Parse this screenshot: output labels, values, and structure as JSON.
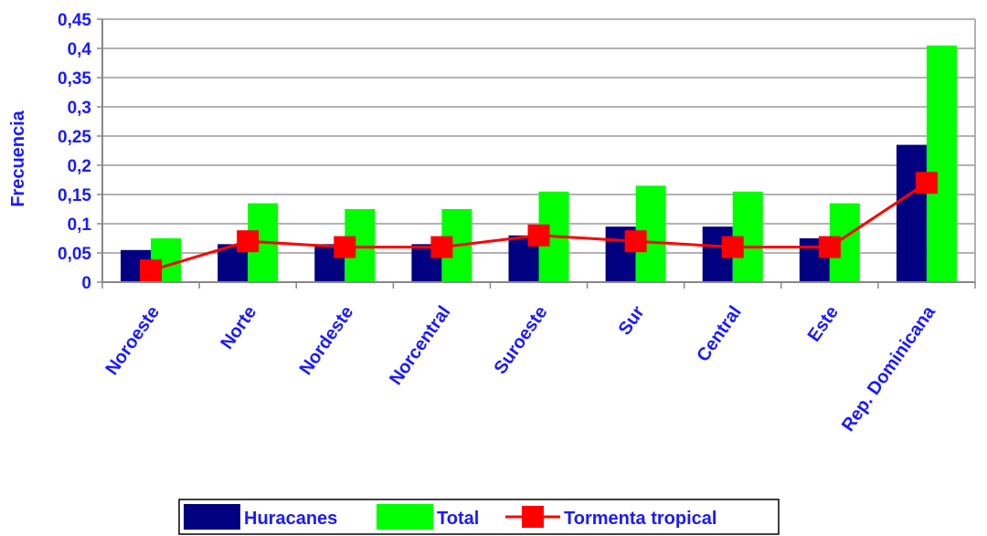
{
  "chart_data": {
    "type": "bar",
    "categories": [
      "Noroeste",
      "Norte",
      "Nordeste",
      "Norcentral",
      "Suroeste",
      "Sur",
      "Central",
      "Este",
      "Rep. Dominicana"
    ],
    "series": [
      {
        "name": "Huracanes",
        "type": "bar",
        "color": "#000080",
        "values": [
          0.055,
          0.065,
          0.065,
          0.065,
          0.08,
          0.095,
          0.095,
          0.075,
          0.235
        ]
      },
      {
        "name": "Total",
        "type": "bar",
        "color": "#00ff00",
        "values": [
          0.075,
          0.135,
          0.125,
          0.125,
          0.155,
          0.165,
          0.155,
          0.135,
          0.405
        ]
      },
      {
        "name": "Tormenta tropical",
        "type": "line",
        "color": "#ff0000",
        "marker": "square",
        "values": [
          0.02,
          0.07,
          0.06,
          0.06,
          0.08,
          0.07,
          0.06,
          0.06,
          0.17
        ]
      }
    ],
    "ylabel": "Frecuencia",
    "ylim": [
      0,
      0.45
    ],
    "yticks": [
      0,
      0.05,
      0.1,
      0.15,
      0.2,
      0.25,
      0.3,
      0.35,
      0.4,
      0.45
    ],
    "ytick_labels": [
      "0",
      "0,05",
      "0,1",
      "0,15",
      "0,2",
      "0,25",
      "0,3",
      "0,35",
      "0,4",
      "0,45"
    ],
    "grid": true,
    "legend_position": "bottom"
  }
}
